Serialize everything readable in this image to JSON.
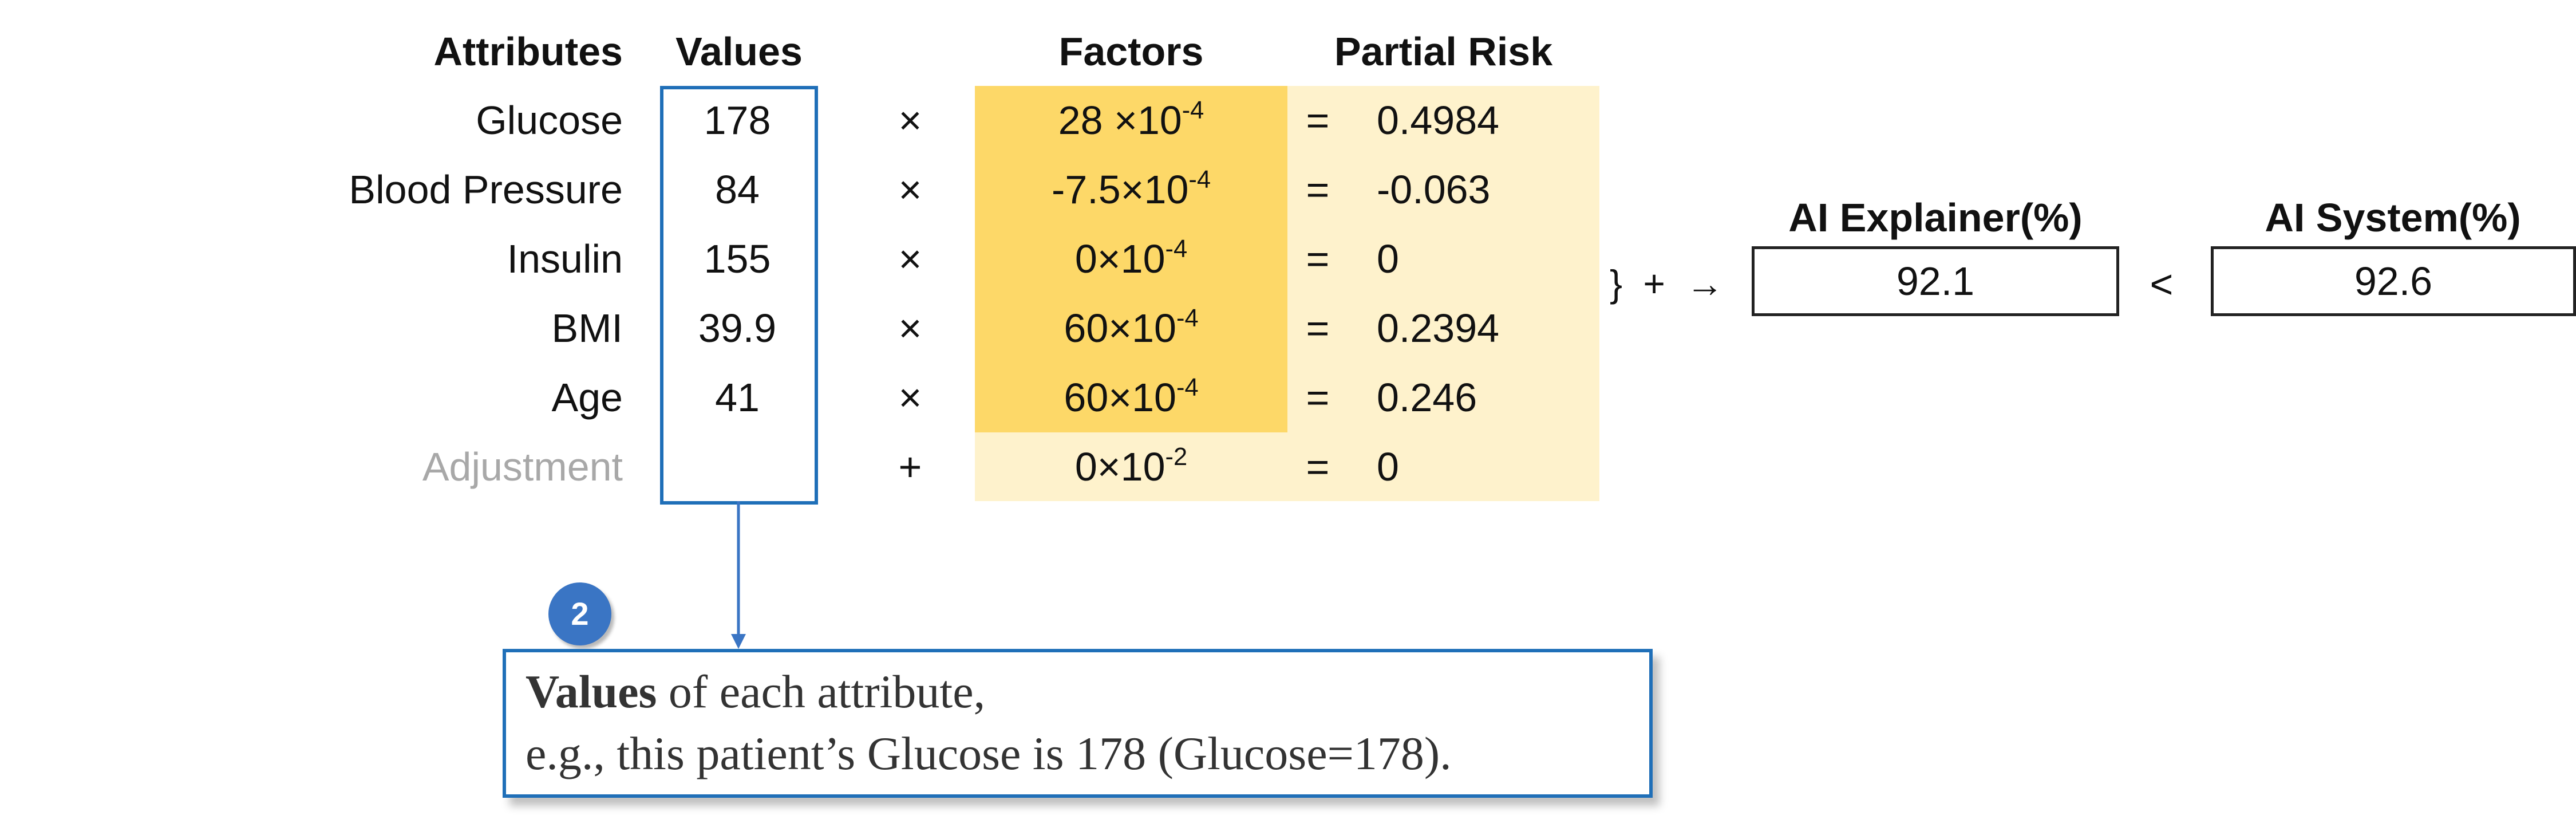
{
  "headers": {
    "attributes": "Attributes",
    "values": "Values",
    "factors": "Factors",
    "partial_risk": "Partial Risk"
  },
  "rows": [
    {
      "attribute": "Glucose",
      "value": "178",
      "operator": "×",
      "factor_base": "28 ×10",
      "factor_exp": "-4",
      "equals": "=",
      "partial": "0.4984"
    },
    {
      "attribute": "Blood Pressure",
      "value": "84",
      "operator": "×",
      "factor_base": "-7.5×10",
      "factor_exp": "-4",
      "equals": "=",
      "partial": "-0.063"
    },
    {
      "attribute": "Insulin",
      "value": "155",
      "operator": "×",
      "factor_base": "0×10",
      "factor_exp": "-4",
      "equals": "=",
      "partial": "0"
    },
    {
      "attribute": "BMI",
      "value": "39.9",
      "operator": "×",
      "factor_base": "60×10",
      "factor_exp": "-4",
      "equals": "=",
      "partial": "0.2394"
    },
    {
      "attribute": "Age",
      "value": "41",
      "operator": "×",
      "factor_base": "60×10",
      "factor_exp": "-4",
      "equals": "=",
      "partial": "0.246"
    },
    {
      "attribute": "Adjustment",
      "value": "",
      "operator": "+",
      "factor_base": "0×10",
      "factor_exp": "-2",
      "equals": "=",
      "partial": "0"
    }
  ],
  "sum_symbols": "} + →",
  "explainer": {
    "label": "AI Explainer(%)",
    "value": "92.1"
  },
  "comparison": "<",
  "system": {
    "label": "AI System(%)",
    "value": "92.6"
  },
  "callout": {
    "step": "2",
    "bold": "Values",
    "line1_rest": " of each attribute,",
    "line2": "e.g., this patient’s Glucose is 178 (Glucose=178)."
  },
  "colors": {
    "factor_dark": "#fdd868",
    "factor_light": "#fef2cc",
    "box_blue": "#1f6fb8",
    "badge_blue": "#3a75c4"
  }
}
